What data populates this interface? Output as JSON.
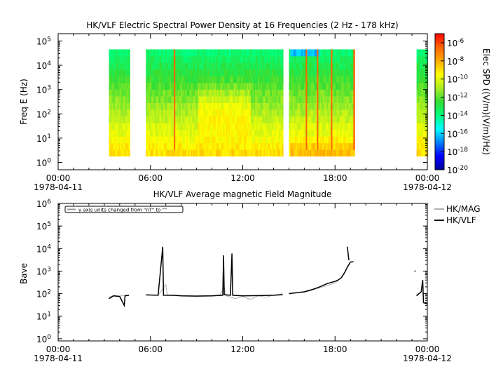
{
  "chart_data": [
    {
      "type": "heatmap",
      "title": "HK/VLF  Electric Spectral Power Density at 16 Frequencies (2 Hz - 178 kHz)",
      "ylabel": "Freq E (Hz)",
      "yscale": "log",
      "ylim": [
        0.5,
        200000
      ],
      "y_tick_exponents": [
        0,
        1,
        2,
        3,
        4,
        5
      ],
      "xlim_hours": [
        0,
        24
      ],
      "x_ticks": [
        {
          "hour": 0,
          "time": "00:00",
          "date": "1978-04-11"
        },
        {
          "hour": 6,
          "time": "06:00",
          "date": ""
        },
        {
          "hour": 12,
          "time": "12:00",
          "date": ""
        },
        {
          "hour": 18,
          "time": "18:00",
          "date": ""
        },
        {
          "hour": 24,
          "time": "00:00",
          "date": "1978-04-12"
        }
      ],
      "frequency_range_hz": [
        1.8,
        45000
      ],
      "data_segments_hours": [
        [
          3.3,
          4.6
        ],
        [
          5.7,
          14.6
        ],
        [
          15.0,
          19.2
        ],
        [
          23.3,
          24.0
        ]
      ],
      "colorbar": {
        "label": "Elec SPD ((V/m)(V/m)/Hz)",
        "scale": "log",
        "range": [
          1e-20,
          1e-05
        ],
        "tick_exponents": [
          -6,
          -8,
          -10,
          -12,
          -14,
          -16,
          -18,
          -20
        ],
        "colors": [
          "#0000a0",
          "#0000ff",
          "#0080ff",
          "#00ffff",
          "#00ff80",
          "#33dd33",
          "#aaee22",
          "#ffff00",
          "#ffaa00",
          "#ff6600",
          "#ff0000"
        ]
      }
    },
    {
      "type": "line",
      "title": "HK/VLF  Average magnetic Field Magnitude",
      "ylabel": "Bave",
      "yscale": "log",
      "ylim": [
        0.8,
        1000000
      ],
      "y_tick_exponents": [
        0,
        1,
        2,
        3,
        4,
        5,
        6
      ],
      "legend_position": "top-right",
      "annotation": "y axis units changed from \"nT\" to \"\"",
      "series": [
        {
          "name": "HK/MAG",
          "color": "#b0b0b0",
          "segments": [
            [
              [
                3.3,
                70
              ],
              [
                3.6,
                82
              ],
              [
                4.0,
                78
              ],
              [
                4.3,
                85
              ],
              [
                4.6,
                80
              ]
            ],
            [
              [
                5.7,
                88
              ],
              [
                6.5,
                86
              ],
              [
                7.0,
                250
              ],
              [
                7.1,
                88
              ],
              [
                8.0,
                82
              ],
              [
                9.0,
                80
              ],
              [
                10.0,
                82
              ],
              [
                10.5,
                85
              ],
              [
                10.8,
                200
              ],
              [
                10.9,
                82
              ],
              [
                11.5,
                60
              ],
              [
                12.0,
                75
              ],
              [
                12.5,
                55
              ],
              [
                13.0,
                80
              ],
              [
                13.5,
                70
              ],
              [
                14.0,
                85
              ],
              [
                14.6,
                100
              ]
            ],
            [
              [
                15.0,
                100
              ],
              [
                15.5,
                110
              ],
              [
                16.0,
                115
              ],
              [
                16.5,
                140
              ],
              [
                17.0,
                180
              ],
              [
                17.5,
                230
              ],
              [
                18.0,
                300
              ],
              [
                18.2,
                380
              ]
            ],
            [
              [
                23.3,
                90
              ],
              [
                23.4,
                100
              ],
              [
                23.5,
                110
              ]
            ]
          ]
        },
        {
          "name": "HK/VLF",
          "color": "#000000",
          "segments": [
            [
              [
                3.3,
                60
              ],
              [
                3.6,
                80
              ],
              [
                4.0,
                75
              ],
              [
                4.3,
                30
              ],
              [
                4.35,
                80
              ],
              [
                4.6,
                85
              ]
            ],
            [
              [
                5.7,
                88
              ],
              [
                6.5,
                85
              ],
              [
                6.8,
                12000
              ],
              [
                6.85,
                85
              ],
              [
                7.5,
                84
              ],
              [
                8.0,
                80
              ],
              [
                9.0,
                78
              ],
              [
                10.0,
                80
              ],
              [
                10.7,
                85
              ],
              [
                10.75,
                5000
              ],
              [
                10.8,
                90
              ],
              [
                11.2,
                85
              ],
              [
                11.3,
                6000
              ],
              [
                11.35,
                85
              ],
              [
                12.0,
                80
              ],
              [
                13.0,
                82
              ],
              [
                14.0,
                85
              ],
              [
                14.6,
                90
              ]
            ],
            [
              [
                15.0,
                100
              ],
              [
                15.5,
                110
              ],
              [
                16.0,
                120
              ],
              [
                16.5,
                150
              ],
              [
                17.0,
                200
              ],
              [
                17.5,
                280
              ],
              [
                18.0,
                350
              ],
              [
                18.2,
                400
              ],
              [
                18.4,
                500
              ],
              [
                18.6,
                800
              ],
              [
                18.8,
                1500
              ],
              [
                19.0,
                2500
              ],
              [
                19.2,
                2600
              ]
            ],
            [
              [
                18.8,
                12000
              ],
              [
                18.9,
                3000
              ]
            ],
            [
              [
                23.2,
                1000
              ]
            ],
            [
              [
                23.3,
                80
              ],
              [
                23.6,
                120
              ],
              [
                23.7,
                400
              ],
              [
                23.75,
                40
              ],
              [
                24.0,
                35
              ]
            ]
          ]
        }
      ]
    }
  ]
}
